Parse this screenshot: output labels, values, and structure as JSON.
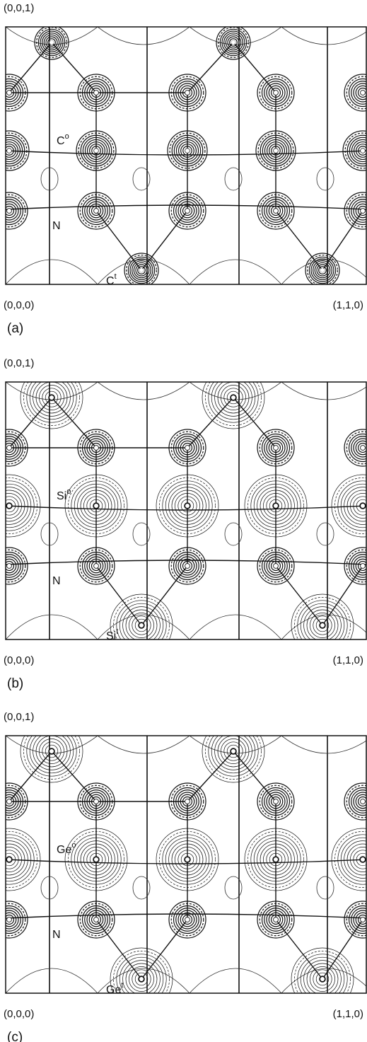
{
  "panels": [
    {
      "top_label": "(0,0,1)",
      "origin_label": "(0,0,0)",
      "end_label": "(1,1,0)",
      "caption": "(a)",
      "atoms": [
        {
          "base": "C",
          "sup": "o"
        },
        {
          "base": "N"
        },
        {
          "base": "C",
          "sup": "t"
        }
      ]
    },
    {
      "top_label": "(0,0,1)",
      "origin_label": "(0,0,0)",
      "end_label": "(1,1,0)",
      "caption": "(b)",
      "atoms": [
        {
          "base": "Si",
          "sup": "o"
        },
        {
          "base": "N"
        },
        {
          "base": "Si",
          "sup": "t"
        }
      ]
    },
    {
      "top_label": "(0,0,1)",
      "origin_label": "(0,0,0)",
      "end_label": "(1,1,0)",
      "caption": "(c)",
      "atoms": [
        {
          "base": "Ge",
          "sup": "o"
        },
        {
          "base": "N"
        },
        {
          "base": "Ge",
          "sup": "t"
        }
      ]
    }
  ]
}
